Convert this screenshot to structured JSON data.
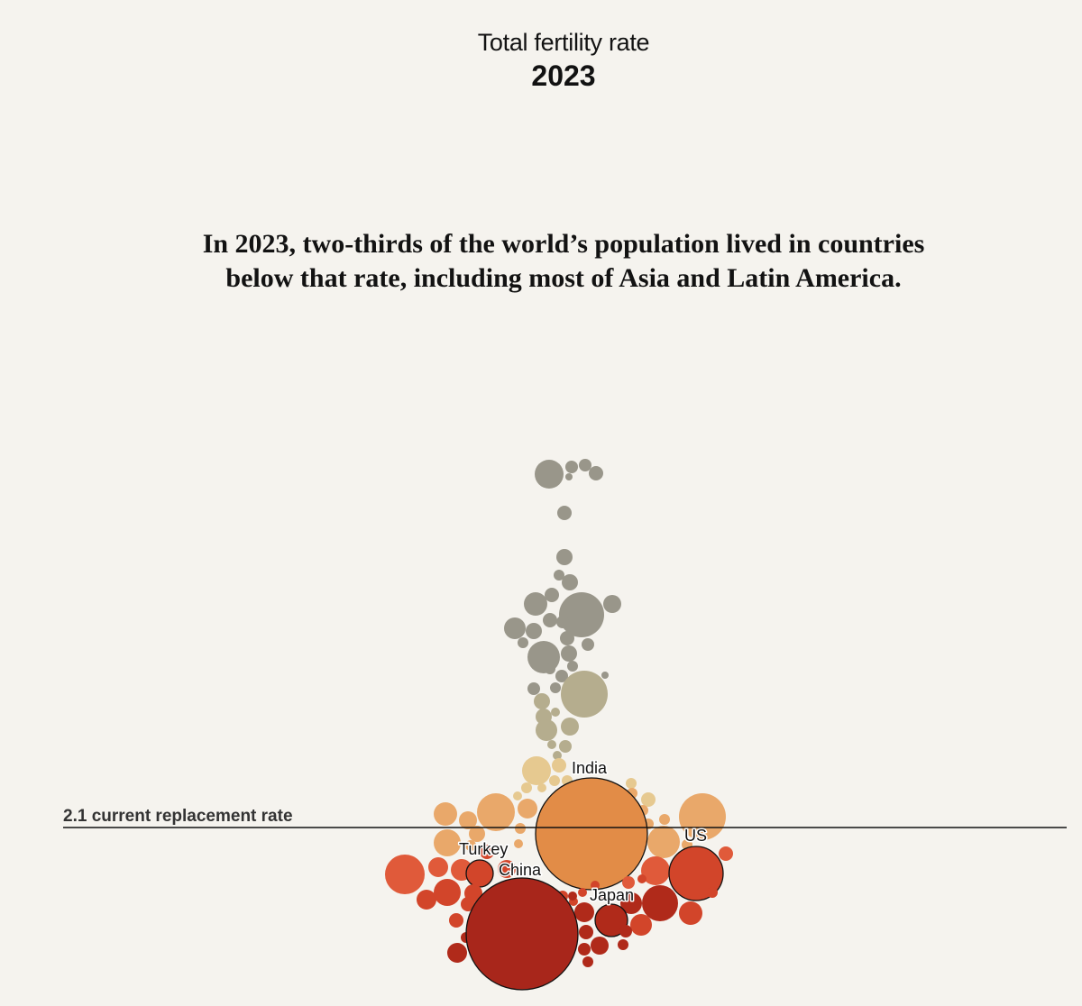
{
  "header": {
    "title": "Total fertility rate",
    "year": "2023"
  },
  "subtitle": {
    "line1": "In 2023, two-thirds of the world’s population lived in countries",
    "line2": "below that rate, including most of Asia and Latin America."
  },
  "chart_data": {
    "type": "scatter",
    "encoding": "bubble swarm: vertical position = total fertility rate, bubble area = population",
    "reference_line": {
      "value": 2.1,
      "label": "2.1 current replacement rate"
    },
    "labeled_countries": [
      {
        "name": "India",
        "fertility_rate": 2.0,
        "population_millions": 1429
      },
      {
        "name": "China",
        "fertility_rate": 1.0,
        "population_millions": 1410
      },
      {
        "name": "US",
        "fertility_rate": 1.6,
        "population_millions": 335
      },
      {
        "name": "Turkey",
        "fertility_rate": 1.5,
        "population_millions": 86
      },
      {
        "name": "Japan",
        "fertility_rate": 1.2,
        "population_millions": 124
      }
    ],
    "color_scale": {
      "high": "#99968a",
      "above_replacement": "#b5ad8e",
      "near_replacement": "#e6c990",
      "below_light": "#e9a86a",
      "india": "#e28c47",
      "below_mid": "#e05a3a",
      "below_deep": "#d2452a",
      "lowest": "#b02a1a",
      "china": "#a8261b",
      "outline": "#121212",
      "reference_line": "#121212"
    }
  }
}
